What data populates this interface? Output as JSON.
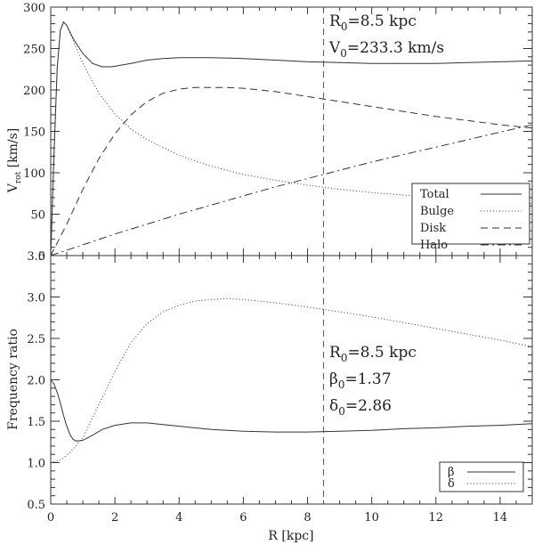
{
  "chart_data": [
    {
      "type": "line",
      "xlabel": "",
      "ylabel": "V_rot [km/s]",
      "xlim": [
        0,
        15
      ],
      "ylim": [
        0,
        300
      ],
      "xticks": [
        0,
        2,
        4,
        6,
        8,
        10,
        12,
        14
      ],
      "yticks": [
        0,
        50,
        100,
        150,
        200,
        250,
        300
      ],
      "ytick_labels": [
        "0",
        "50",
        "100",
        "150",
        "200",
        "250",
        "300"
      ],
      "vline_x": 8.5,
      "annotations": [
        "R0=8.5 kpc",
        "V0=233.3 km/s"
      ],
      "legend_position": "bottom-right",
      "series": [
        {
          "name": "Total",
          "style": "solid",
          "x": [
            0,
            0.1,
            0.2,
            0.3,
            0.4,
            0.5,
            0.7,
            1.0,
            1.3,
            1.6,
            1.9,
            2.2,
            2.5,
            3,
            3.5,
            4,
            4.5,
            5,
            6,
            7,
            8,
            9,
            10,
            11,
            12,
            13,
            14,
            15
          ],
          "values": [
            0,
            120,
            225,
            272,
            282,
            278,
            262,
            244,
            232,
            228,
            228,
            230,
            232,
            236,
            238,
            239,
            239,
            239,
            238,
            236,
            234,
            233,
            232,
            232,
            232,
            233,
            234,
            235
          ]
        },
        {
          "name": "Bulge",
          "style": "dotted",
          "x": [
            0,
            0.1,
            0.2,
            0.3,
            0.4,
            0.5,
            0.7,
            1.0,
            1.5,
            2,
            2.5,
            3,
            4,
            5,
            6,
            7,
            8,
            9,
            10,
            11,
            12,
            13,
            14,
            15
          ],
          "values": [
            0,
            120,
            225,
            272,
            282,
            278,
            260,
            232,
            196,
            171,
            153,
            140,
            121,
            108,
            98,
            91,
            85,
            80,
            76,
            73,
            70,
            67,
            65,
            63
          ]
        },
        {
          "name": "Disk",
          "style": "dashed",
          "x": [
            0,
            0.5,
            1,
            1.5,
            2,
            2.5,
            3,
            3.5,
            4,
            4.5,
            5,
            5.5,
            6,
            7,
            8,
            9,
            10,
            11,
            12,
            13,
            14,
            15
          ],
          "values": [
            0,
            38,
            80,
            117,
            147,
            170,
            186,
            196,
            201,
            203,
            203,
            203,
            202,
            198,
            192,
            186,
            180,
            174,
            168,
            163,
            158,
            154
          ]
        },
        {
          "name": "Halo",
          "style": "dashdot",
          "x": [
            0,
            1,
            2,
            3,
            4,
            5,
            6,
            7,
            8,
            9,
            10,
            11,
            12,
            13,
            14,
            15
          ],
          "values": [
            0,
            13,
            26,
            38,
            50,
            61,
            72,
            83,
            93,
            103,
            113,
            122,
            131,
            140,
            149,
            158
          ]
        }
      ]
    },
    {
      "type": "line",
      "xlabel": "R [kpc]",
      "ylabel": "Frequency ratio",
      "xlim": [
        0,
        15
      ],
      "ylim": [
        0.5,
        3.5
      ],
      "xticks": [
        0,
        2,
        4,
        6,
        8,
        10,
        12,
        14
      ],
      "xtick_labels": [
        "0",
        "2",
        "4",
        "6",
        "8",
        "10",
        "12",
        "14"
      ],
      "yticks": [
        0.5,
        1.0,
        1.5,
        2.0,
        2.5,
        3.0,
        3.5
      ],
      "ytick_labels": [
        "0.5",
        "1.0",
        "1.5",
        "2.0",
        "2.5",
        "3.0",
        "3.5"
      ],
      "vline_x": 8.5,
      "annotations": [
        "R0=8.5 kpc",
        "β0=1.37",
        "δ0=2.86"
      ],
      "legend_position": "bottom-right",
      "series": [
        {
          "name": "β",
          "style": "solid",
          "x": [
            0,
            0.1,
            0.2,
            0.3,
            0.4,
            0.5,
            0.6,
            0.7,
            0.8,
            1.0,
            1.3,
            1.6,
            2.0,
            2.5,
            3,
            3.5,
            4,
            5,
            6,
            7,
            8,
            9,
            10,
            11,
            12,
            13,
            14,
            15
          ],
          "values": [
            2.0,
            1.95,
            1.85,
            1.72,
            1.57,
            1.44,
            1.34,
            1.28,
            1.26,
            1.27,
            1.33,
            1.4,
            1.45,
            1.48,
            1.48,
            1.46,
            1.44,
            1.4,
            1.38,
            1.37,
            1.37,
            1.38,
            1.39,
            1.41,
            1.42,
            1.44,
            1.45,
            1.47
          ]
        },
        {
          "name": "δ",
          "style": "dotted",
          "x": [
            0,
            0.3,
            0.6,
            1.0,
            1.5,
            2,
            2.5,
            3,
            3.5,
            4,
            4.5,
            5,
            5.5,
            6,
            7,
            8,
            9,
            10,
            11,
            12,
            13,
            14,
            15
          ],
          "values": [
            1.0,
            1.03,
            1.12,
            1.3,
            1.7,
            2.1,
            2.45,
            2.68,
            2.82,
            2.9,
            2.95,
            2.97,
            2.98,
            2.97,
            2.93,
            2.88,
            2.82,
            2.76,
            2.69,
            2.62,
            2.55,
            2.48,
            2.4
          ]
        }
      ]
    }
  ]
}
